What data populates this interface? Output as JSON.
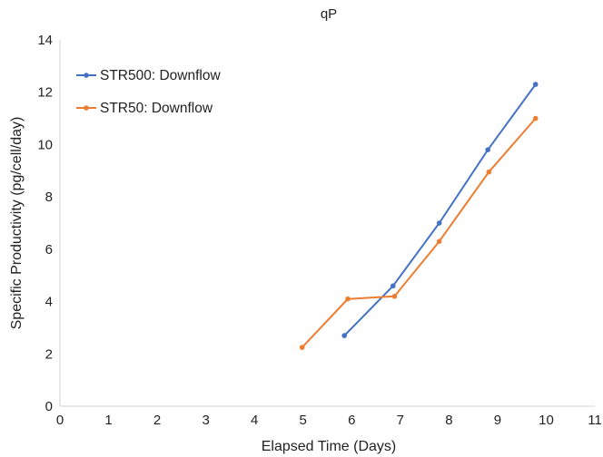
{
  "chart_data": {
    "type": "line",
    "title": "qP",
    "xlabel": "Elapsed Time (Days)",
    "ylabel": "Specific Productivity (pg/cell/day)",
    "xlim": [
      0,
      11
    ],
    "ylim": [
      0,
      14
    ],
    "xticks": [
      0,
      1,
      2,
      3,
      4,
      5,
      6,
      7,
      8,
      9,
      10,
      11
    ],
    "yticks": [
      0,
      2,
      4,
      6,
      8,
      10,
      12,
      14
    ],
    "grid": false,
    "legend_position": "top-left",
    "series": [
      {
        "name": "STR500: Downflow",
        "color": "#4472c4",
        "x": [
          5.85,
          6.85,
          7.8,
          8.8,
          9.78
        ],
        "y": [
          2.7,
          4.6,
          7.0,
          9.8,
          12.3
        ]
      },
      {
        "name": "STR50: Downflow",
        "color": "#ed7d31",
        "x": [
          4.98,
          5.92,
          6.88,
          7.8,
          8.82,
          9.78
        ],
        "y": [
          2.25,
          4.1,
          4.2,
          6.3,
          8.95,
          11.0
        ]
      }
    ]
  }
}
